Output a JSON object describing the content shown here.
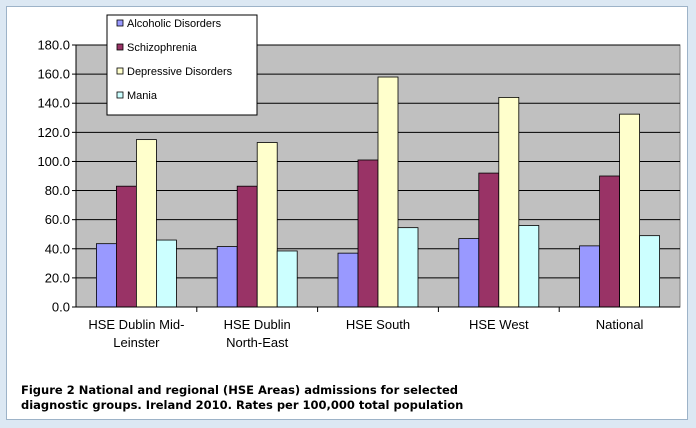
{
  "chart_data": {
    "type": "bar",
    "categories": [
      [
        "HSE Dublin Mid-",
        "Leinster"
      ],
      [
        "HSE Dublin",
        "North-East"
      ],
      [
        "HSE South"
      ],
      [
        "HSE West"
      ],
      [
        "National"
      ]
    ],
    "series": [
      {
        "name": "Alcoholic Disorders",
        "color": "#9999ff",
        "values": [
          43.5,
          41.5,
          37.0,
          47.0,
          42.0
        ]
      },
      {
        "name": "Schizophrenia",
        "color": "#993366",
        "values": [
          83.0,
          83.0,
          101.0,
          92.0,
          90.0
        ]
      },
      {
        "name": "Depressive Disorders",
        "color": "#ffffcc",
        "values": [
          115.0,
          113.0,
          158.0,
          144.0,
          132.5
        ]
      },
      {
        "name": "Mania",
        "color": "#ccffff",
        "values": [
          46.0,
          38.5,
          54.5,
          56.0,
          49.0
        ]
      }
    ],
    "ylim": [
      0,
      180
    ],
    "ytick_step": 20,
    "ytick_labels": [
      "0.0",
      "20.0",
      "40.0",
      "60.0",
      "80.0",
      "100.0",
      "120.0",
      "140.0",
      "160.0",
      "180.0"
    ],
    "grid": true,
    "plot_background": "#c0c0c0",
    "legend_position": "top-left",
    "title": "",
    "xlabel": "",
    "ylabel": ""
  },
  "caption": {
    "line1": "Figure 2   National and regional (HSE Areas) admissions for selected",
    "line2": "diagnostic groups.  Ireland 2010.  Rates per 100,000 total population"
  }
}
